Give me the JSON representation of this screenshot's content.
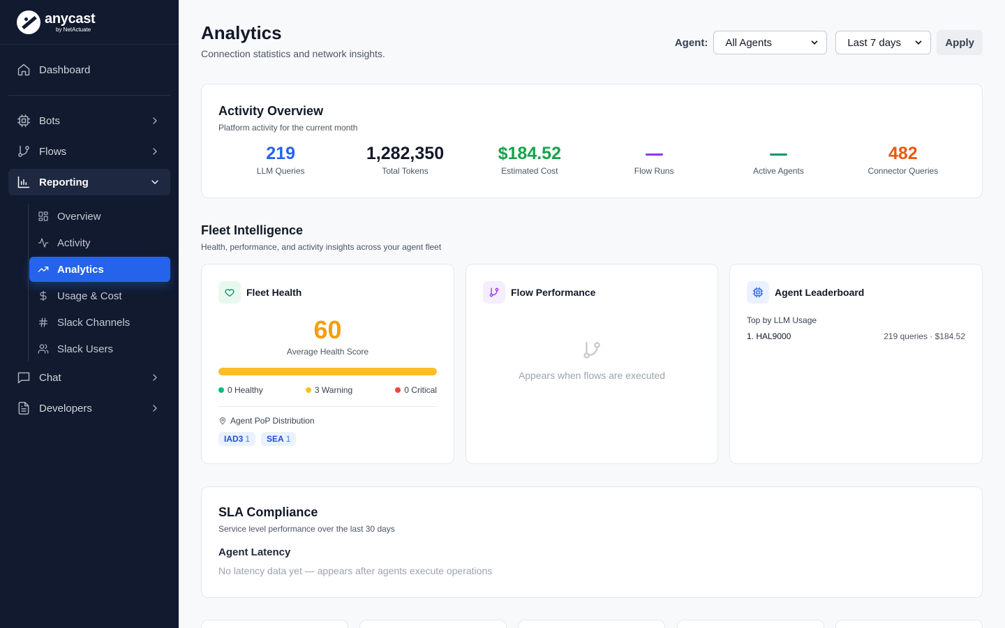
{
  "brand": {
    "name": "anycast",
    "sub": "by NetActuate"
  },
  "sidebar": {
    "dashboard": "Dashboard",
    "bots": "Bots",
    "flows": "Flows",
    "reporting": "Reporting",
    "reporting_items": [
      {
        "label": "Overview",
        "icon": "grid-icon"
      },
      {
        "label": "Activity",
        "icon": "pulse-icon"
      },
      {
        "label": "Analytics",
        "icon": "trend-icon"
      },
      {
        "label": "Usage & Cost",
        "icon": "dollar-icon"
      },
      {
        "label": "Slack Channels",
        "icon": "hash-icon"
      },
      {
        "label": "Slack Users",
        "icon": "users-icon"
      }
    ],
    "chat": "Chat",
    "developers": "Developers"
  },
  "header": {
    "title": "Analytics",
    "subtitle": "Connection statistics and network insights.",
    "agent_label": "Agent:",
    "agent_value": "All Agents",
    "period_value": "Last 7 days",
    "apply_label": "Apply"
  },
  "activity": {
    "title": "Activity Overview",
    "subtitle": "Platform activity for the current month",
    "stats": [
      {
        "value": "219",
        "label": "LLM Queries",
        "color": "#2563eb"
      },
      {
        "value": "1,282,350",
        "label": "Total Tokens",
        "color": "#111827"
      },
      {
        "value": "$184.52",
        "label": "Estimated Cost",
        "color": "#16a34a"
      },
      {
        "value": "",
        "label": "Flow Runs",
        "color": "#9333ea"
      },
      {
        "value": "",
        "label": "Active Agents",
        "color": "#059669"
      },
      {
        "value": "482",
        "label": "Connector Queries",
        "color": "#ea580c"
      }
    ]
  },
  "fleet": {
    "title": "Fleet Intelligence",
    "subtitle": "Health, performance, and activity insights across your agent fleet",
    "health": {
      "title": "Fleet Health",
      "score": "60",
      "score_label": "Average Health Score",
      "score_fraction": 1.0,
      "healthy": "0 Healthy",
      "warning": "3 Warning",
      "critical": "0 Critical",
      "pop_label": "Agent PoP Distribution",
      "pops": [
        {
          "code": "IAD3",
          "count": "1"
        },
        {
          "code": "SEA",
          "count": "1"
        }
      ]
    },
    "flow": {
      "title": "Flow Performance",
      "empty": "Appears when flows are executed"
    },
    "leaderboard": {
      "title": "Agent Leaderboard",
      "label": "Top by LLM Usage",
      "rows": [
        {
          "name": "1. HAL9000",
          "meta": "219 queries · $184.52"
        }
      ]
    }
  },
  "sla": {
    "title": "SLA Compliance",
    "subtitle": "Service level performance over the last 30 days",
    "latency_title": "Agent Latency",
    "latency_empty": "No latency data yet — appears after agents execute operations"
  }
}
